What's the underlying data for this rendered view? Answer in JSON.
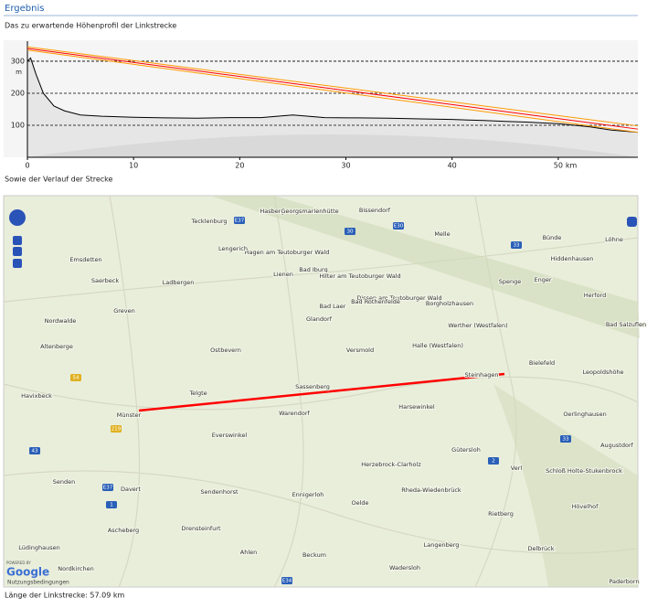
{
  "header": {
    "title": "Ergebnis"
  },
  "intro": "Das zu erwartende Höhenprofil der Linkstrecke",
  "profile": {
    "type": "line",
    "x_unit": "km",
    "y_unit": "m",
    "xlim": [
      0,
      57.5
    ],
    "ylim": [
      0,
      357
    ],
    "xticks": [
      0,
      10,
      20,
      30,
      40,
      50
    ],
    "yticks": [
      100,
      200,
      300
    ],
    "terrain": {
      "color": "#000000",
      "x": [
        0,
        0.3,
        0.8,
        1.5,
        2.5,
        3.5,
        5,
        7,
        10,
        13,
        16,
        19,
        22,
        25,
        28,
        31,
        34,
        37,
        40,
        43,
        45,
        47,
        50,
        53,
        55,
        57.5
      ],
      "values": [
        300,
        310,
        260,
        200,
        160,
        145,
        132,
        128,
        125,
        123,
        122,
        124,
        124,
        132,
        124,
        123,
        122,
        120,
        118,
        115,
        112,
        110,
        105,
        95,
        85,
        78
      ]
    },
    "lines": [
      {
        "color": "#ff9900",
        "x": [
          0,
          57.5
        ],
        "values": [
          345,
          98
        ]
      },
      {
        "color": "#ff9900",
        "x": [
          0,
          57.5
        ],
        "values": [
          335,
          78
        ]
      },
      {
        "color": "#ff0000",
        "x": [
          0,
          57.5
        ],
        "values": [
          340,
          88
        ]
      }
    ]
  },
  "map_caption": "Sowie der Verlauf der Strecke",
  "map": {
    "places": [
      "Bissendorf",
      "Melle",
      "Bünde",
      "Löhne",
      "Hiddenhausen",
      "Tecklenburg",
      "Hasbergen",
      "Georgsmarienhütte",
      "Hagen am Teutoburger Wald",
      "Lengerich",
      "Emsdetten",
      "Saerbeck",
      "Ladbergen",
      "Lienen",
      "Bad Iburg",
      "Hilter am Teutoburger Wald",
      "Bad Laer",
      "Dissen am Teutoburger Wald",
      "Bad Rothenfelde",
      "Borgholzhausen",
      "Spenge",
      "Enger",
      "Herford",
      "Greven",
      "Nordwalde",
      "Glandorf",
      "Werther (Westfalen)",
      "Bad Salzuflen",
      "Altenberge",
      "Ostbevern",
      "Versmold",
      "Halle (Westfalen)",
      "Bielefeld",
      "Leopoldshöhe",
      "Havixbeck",
      "Münster",
      "Sassenberg",
      "Telgte",
      "Steinhagen",
      "Harsewinkel",
      "Oerlinghausen",
      "Warendorf",
      "Everswinkel",
      "Gütersloh",
      "Augustdorf",
      "Senden",
      "Herzebrock-Clarholz",
      "Verl",
      "Schloß Holte-Stukenbrock",
      "Davert",
      "Sendenhorst",
      "Ennigerloh",
      "Rheda-Wiedenbrück",
      "Oelde",
      "Rietberg",
      "Hövelhof",
      "Ascheberg",
      "Drensteinfurt",
      "Lüdinghausen",
      "Delbrück",
      "Langenberg",
      "Ahlen",
      "Beckum",
      "Nordkirchen",
      "Wadersloh",
      "Paderborn"
    ],
    "roads": [
      "E37",
      "30",
      "33",
      "E30",
      "54",
      "219",
      "43",
      "1",
      "2",
      "E34",
      "E37",
      "33"
    ],
    "logo_caption": "POWERED BY",
    "logo": "Google",
    "terms": "Nutzungsbedingungen"
  },
  "footer": "Länge der Linkstrecke: 57.09 km"
}
